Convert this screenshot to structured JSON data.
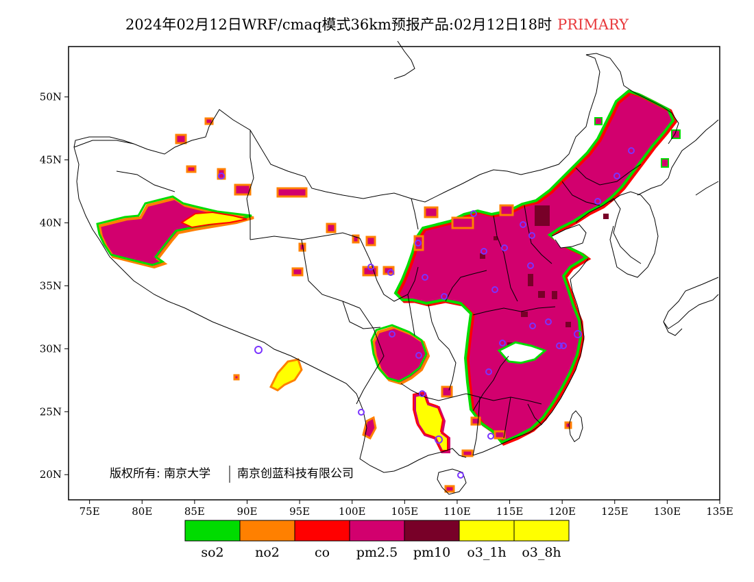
{
  "header": {
    "title": "2024年02月12日WRF/cmaq模式36km预报产品:02月12日18时",
    "tag": "PRIMARY"
  },
  "map": {
    "lon_range": [
      73,
      135
    ],
    "lat_range": [
      18,
      54
    ],
    "x_ticks": [
      "75E",
      "80E",
      "85E",
      "90E",
      "95E",
      "100E",
      "105E",
      "110E",
      "115E",
      "120E",
      "125E",
      "130E",
      "135E"
    ],
    "y_ticks": [
      "20N",
      "25N",
      "30N",
      "35N",
      "40N",
      "45N",
      "50N"
    ],
    "copyright": "版权所有: 南京大学",
    "copyright_2": "南京创蓝科技有限公司"
  },
  "legend": {
    "items": [
      {
        "label": "so2",
        "color": "#00dc00"
      },
      {
        "label": "no2",
        "color": "#ff8000"
      },
      {
        "label": "co",
        "color": "#ff0000"
      },
      {
        "label": "pm2.5",
        "color": "#d2006e"
      },
      {
        "label": "pm10",
        "color": "#780028"
      },
      {
        "label": "o3_1h",
        "color": "#ffff00"
      },
      {
        "label": "o3_8h",
        "color": "#ffff00"
      }
    ]
  }
}
